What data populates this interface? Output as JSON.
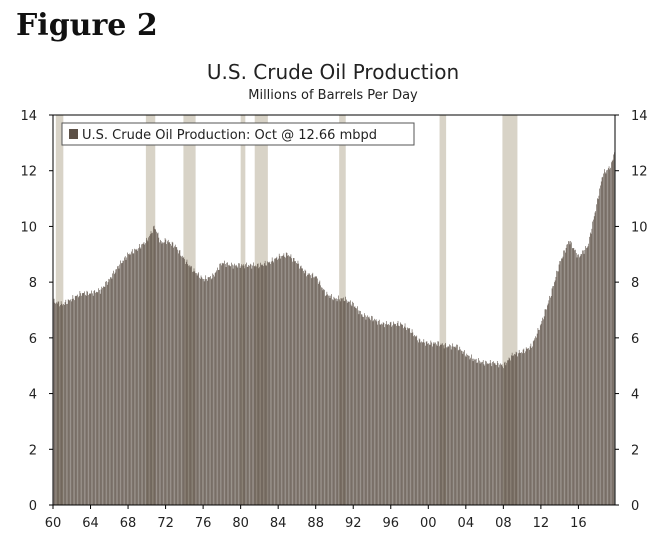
{
  "figure_label": "Figure 2",
  "colors": {
    "bars": "#5c5046",
    "recession": "#d8d3c7",
    "frame": "#000000"
  },
  "chart_data": {
    "type": "bar",
    "title": "U.S. Crude Oil Production",
    "subtitle": "Millions of Barrels Per Day",
    "xlabel": "",
    "ylabel": "",
    "ylim": [
      0,
      14
    ],
    "xlim": [
      1960,
      2019.9
    ],
    "y_ticks": [
      0,
      2,
      4,
      6,
      8,
      10,
      12,
      14
    ],
    "x_ticks": [
      "60",
      "64",
      "68",
      "72",
      "76",
      "80",
      "84",
      "88",
      "92",
      "96",
      "00",
      "04",
      "08",
      "12",
      "16"
    ],
    "legend": {
      "label": "U.S. Crude Oil Production: Oct @ 12.66 mbpd",
      "placement": "top-left"
    },
    "grid": false,
    "recessions": [
      [
        1960.3,
        1961.1
      ],
      [
        1969.9,
        1970.9
      ],
      [
        1973.9,
        1975.2
      ],
      [
        1980.0,
        1980.5
      ],
      [
        1981.5,
        1982.9
      ],
      [
        1990.5,
        1991.2
      ],
      [
        2001.2,
        2001.9
      ],
      [
        2007.9,
        2009.5
      ]
    ],
    "series": [
      {
        "name": "U.S. Crude Oil Production",
        "frequency": "monthly",
        "points": [
          [
            1960.0,
            7.3
          ],
          [
            1961.0,
            7.2
          ],
          [
            1962.0,
            7.4
          ],
          [
            1963.0,
            7.6
          ],
          [
            1964.0,
            7.6
          ],
          [
            1965.0,
            7.7
          ],
          [
            1966.0,
            8.1
          ],
          [
            1967.0,
            8.6
          ],
          [
            1968.0,
            9.0
          ],
          [
            1969.0,
            9.2
          ],
          [
            1970.0,
            9.5
          ],
          [
            1970.8,
            10.0
          ],
          [
            1971.5,
            9.4
          ],
          [
            1972.0,
            9.5
          ],
          [
            1973.0,
            9.3
          ],
          [
            1974.0,
            8.8
          ],
          [
            1975.0,
            8.4
          ],
          [
            1976.0,
            8.1
          ],
          [
            1977.0,
            8.2
          ],
          [
            1978.0,
            8.7
          ],
          [
            1979.0,
            8.6
          ],
          [
            1980.0,
            8.6
          ],
          [
            1981.0,
            8.6
          ],
          [
            1982.0,
            8.6
          ],
          [
            1983.0,
            8.7
          ],
          [
            1984.0,
            8.9
          ],
          [
            1985.0,
            9.0
          ],
          [
            1986.0,
            8.7
          ],
          [
            1987.0,
            8.3
          ],
          [
            1988.0,
            8.2
          ],
          [
            1989.0,
            7.6
          ],
          [
            1990.0,
            7.4
          ],
          [
            1991.0,
            7.4
          ],
          [
            1992.0,
            7.2
          ],
          [
            1993.0,
            6.8
          ],
          [
            1994.0,
            6.7
          ],
          [
            1995.0,
            6.5
          ],
          [
            1996.0,
            6.5
          ],
          [
            1997.0,
            6.5
          ],
          [
            1998.0,
            6.3
          ],
          [
            1999.0,
            5.9
          ],
          [
            2000.0,
            5.8
          ],
          [
            2001.0,
            5.8
          ],
          [
            2002.0,
            5.7
          ],
          [
            2003.0,
            5.7
          ],
          [
            2004.0,
            5.4
          ],
          [
            2005.0,
            5.2
          ],
          [
            2006.0,
            5.1
          ],
          [
            2007.0,
            5.1
          ],
          [
            2008.0,
            5.0
          ],
          [
            2009.0,
            5.4
          ],
          [
            2010.0,
            5.5
          ],
          [
            2011.0,
            5.7
          ],
          [
            2012.0,
            6.5
          ],
          [
            2013.0,
            7.5
          ],
          [
            2014.0,
            8.7
          ],
          [
            2015.0,
            9.5
          ],
          [
            2016.0,
            8.9
          ],
          [
            2017.0,
            9.3
          ],
          [
            2018.0,
            10.9
          ],
          [
            2018.6,
            11.9
          ],
          [
            2019.0,
            12.0
          ],
          [
            2019.5,
            12.2
          ],
          [
            2019.8,
            12.66
          ]
        ]
      }
    ]
  }
}
